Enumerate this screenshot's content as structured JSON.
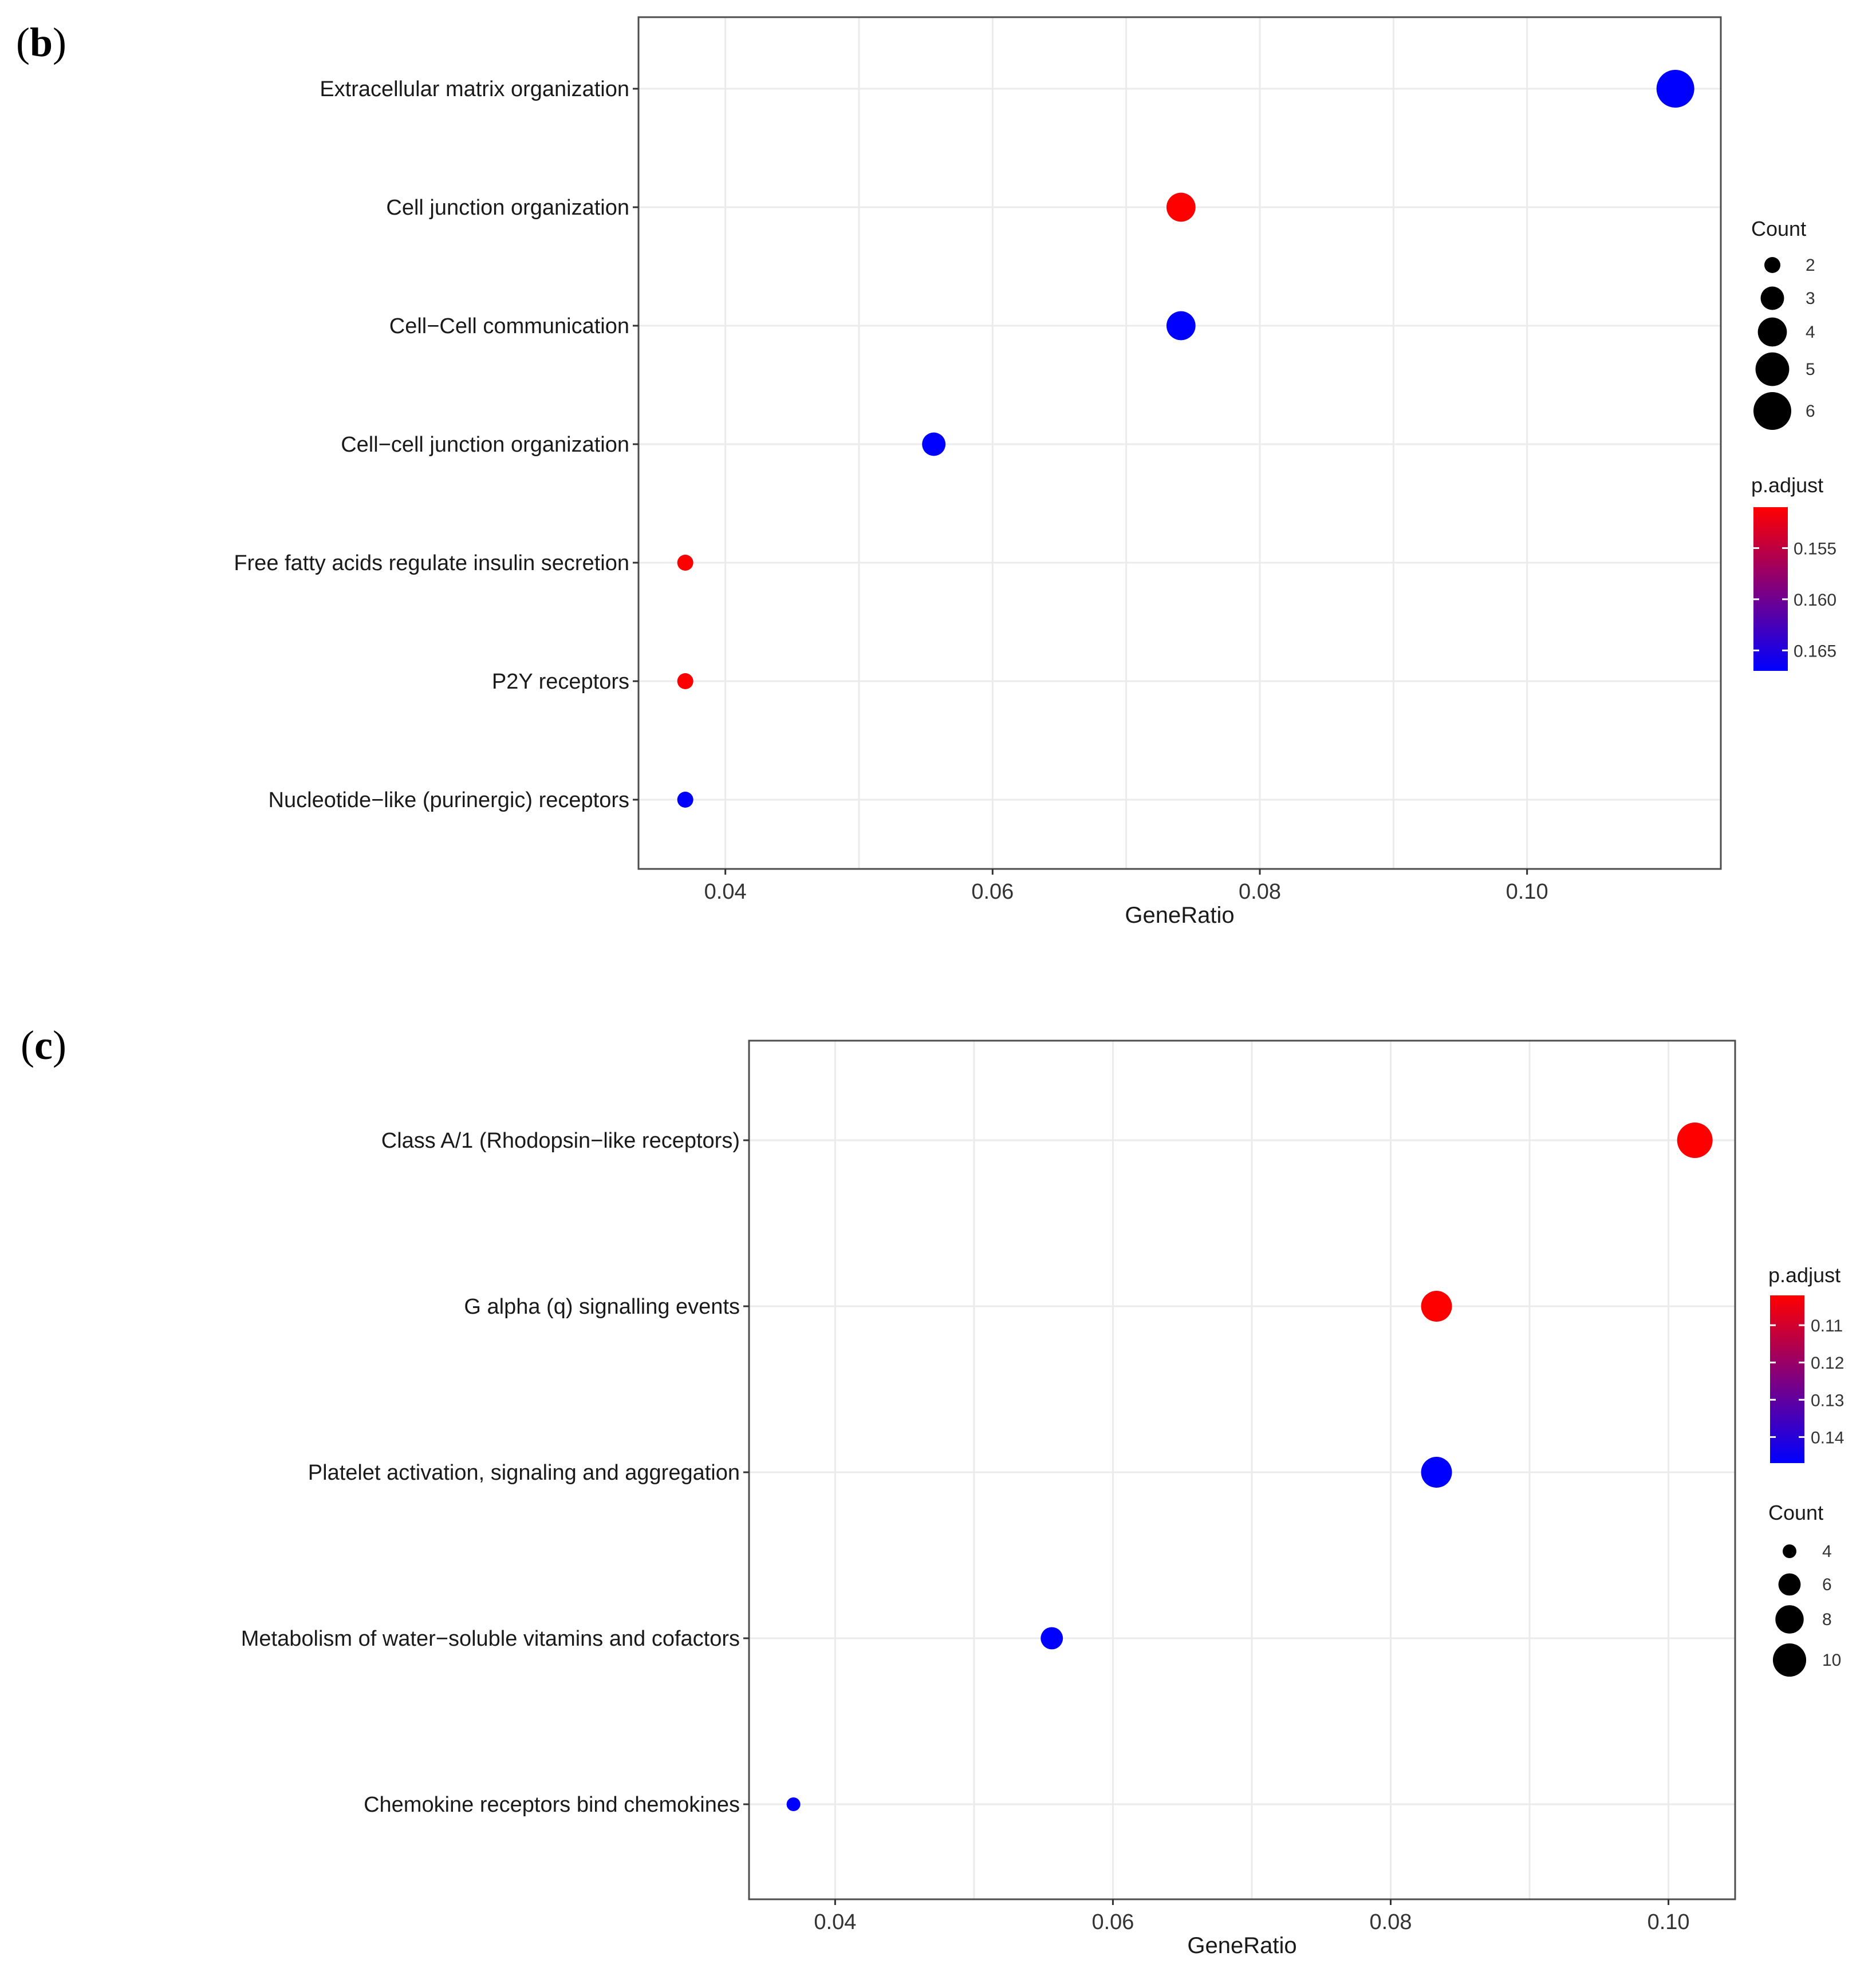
{
  "figure": {
    "panel_b_label": "b",
    "panel_c_label": "c"
  },
  "chart_data": [
    {
      "type": "scatter",
      "panel": "b",
      "xlabel": "GeneRatio",
      "ylabel": "",
      "xlim": [
        0.0335,
        0.1145
      ],
      "xticks": [
        0.04,
        0.06,
        0.08,
        0.1
      ],
      "xtick_labels": [
        "0.04",
        "0.06",
        "0.08",
        "0.10"
      ],
      "grid": true,
      "categories": [
        "Extracellular matrix organization",
        "Cell junction organization",
        "Cell−Cell communication",
        "Cell−cell junction organization",
        "Free fatty acids regulate insulin secretion",
        "P2Y receptors",
        "Nucleotide−like (purinergic) receptors"
      ],
      "x": [
        0.1111,
        0.0741,
        0.0741,
        0.0556,
        0.037,
        0.037,
        0.037
      ],
      "count": [
        6,
        4,
        4,
        3,
        2,
        2,
        2
      ],
      "p_adjust": [
        0.167,
        0.151,
        0.167,
        0.167,
        0.151,
        0.151,
        0.167
      ],
      "size_legend": {
        "title": "Count",
        "values": [
          2,
          3,
          4,
          5,
          6
        ],
        "labels": [
          "2",
          "3",
          "4",
          "5",
          "6"
        ]
      },
      "color_legend": {
        "title": "p.adjust",
        "range": [
          0.151,
          0.167
        ],
        "ticks": [
          0.155,
          0.16,
          0.165
        ],
        "tick_labels": [
          "0.155",
          "0.160",
          "0.165"
        ],
        "low_color": "#ff0000",
        "high_color": "#0000ff"
      },
      "legend_order": "count-first",
      "legend_position": "right"
    },
    {
      "type": "scatter",
      "panel": "c",
      "xlabel": "GeneRatio",
      "ylabel": "",
      "xlim": [
        0.0338,
        0.1048
      ],
      "xticks": [
        0.04,
        0.06,
        0.08,
        0.1
      ],
      "xtick_labels": [
        "0.04",
        "0.06",
        "0.08",
        "0.10"
      ],
      "grid": true,
      "categories": [
        "Class A/1 (Rhodopsin−like receptors)",
        "G alpha (q) signalling events",
        "Platelet activation, signaling and aggregation",
        "Metabolism of water−soluble vitamins and cofactors",
        "Chemokine receptors bind chemokines"
      ],
      "x": [
        0.1019,
        0.0833,
        0.0833,
        0.0556,
        0.037
      ],
      "count": [
        11,
        9,
        9,
        6,
        4
      ],
      "p_adjust": [
        0.102,
        0.102,
        0.147,
        0.147,
        0.147
      ],
      "size_legend": {
        "title": "Count",
        "values": [
          4,
          6,
          8,
          10
        ],
        "labels": [
          "4",
          "6",
          "8",
          "10"
        ]
      },
      "color_legend": {
        "title": "p.adjust",
        "range": [
          0.102,
          0.147
        ],
        "ticks": [
          0.11,
          0.12,
          0.13,
          0.14
        ],
        "tick_labels": [
          "0.11",
          "0.12",
          "0.13",
          "0.14"
        ],
        "low_color": "#ff0000",
        "high_color": "#0000ff"
      },
      "legend_order": "color-first",
      "legend_position": "right"
    }
  ]
}
